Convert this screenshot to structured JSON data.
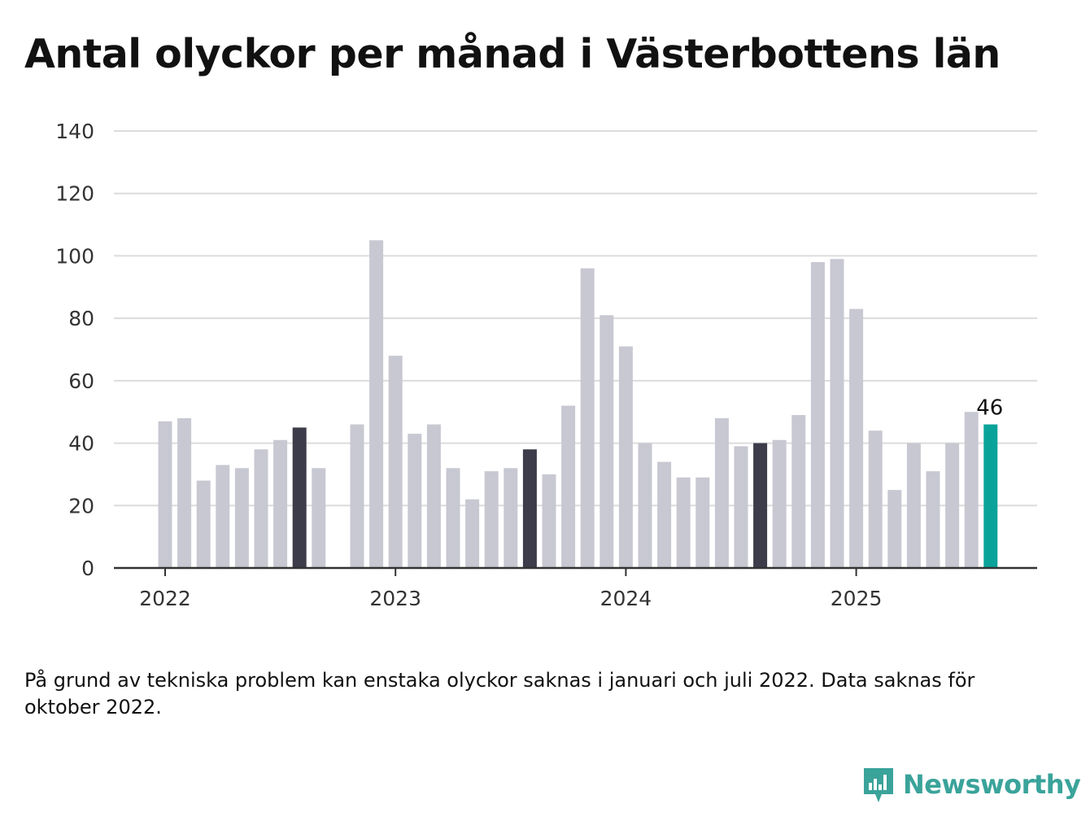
{
  "title": "Antal olyckor per månad i Västerbottens län",
  "note": "På grund av tekniska problem kan enstaka olyckor saknas i januari och juli 2022. Data saknas för oktober 2022.",
  "brand": "Newsworthy",
  "colors": {
    "bar": "#c8c8d2",
    "highlight": "#3c3c4a",
    "latest": "#0aa39a",
    "grid": "#dcdcdc",
    "axis": "#333333",
    "brand": "#3aa39a"
  },
  "chart_data": {
    "type": "bar",
    "ylim": [
      0,
      140
    ],
    "yticks": [
      0,
      20,
      40,
      60,
      80,
      100,
      120,
      140
    ],
    "xlabels": [
      "2022",
      "2023",
      "2024",
      "2025"
    ],
    "grid": true,
    "categories": [
      "2022-01",
      "2022-02",
      "2022-03",
      "2022-04",
      "2022-05",
      "2022-06",
      "2022-07",
      "2022-08",
      "2022-09",
      "2022-10",
      "2022-11",
      "2022-12",
      "2023-01",
      "2023-02",
      "2023-03",
      "2023-04",
      "2023-05",
      "2023-06",
      "2023-07",
      "2023-08",
      "2023-09",
      "2023-10",
      "2023-11",
      "2023-12",
      "2024-01",
      "2024-02",
      "2024-03",
      "2024-04",
      "2024-05",
      "2024-06",
      "2024-07",
      "2024-08",
      "2024-09",
      "2024-10",
      "2024-11",
      "2024-12",
      "2025-01",
      "2025-02",
      "2025-03",
      "2025-04",
      "2025-05",
      "2025-06",
      "2025-07",
      "2025-08"
    ],
    "values": [
      47,
      48,
      28,
      33,
      32,
      38,
      41,
      45,
      32,
      null,
      46,
      105,
      68,
      43,
      46,
      32,
      22,
      31,
      32,
      38,
      30,
      52,
      96,
      81,
      71,
      40,
      34,
      29,
      29,
      48,
      39,
      40,
      41,
      49,
      98,
      99,
      83,
      44,
      25,
      40,
      31,
      40,
      50,
      46
    ],
    "highlighted": [
      "2022-08",
      "2023-08",
      "2024-08"
    ],
    "latest": "2025-08",
    "latest_label": "46"
  }
}
